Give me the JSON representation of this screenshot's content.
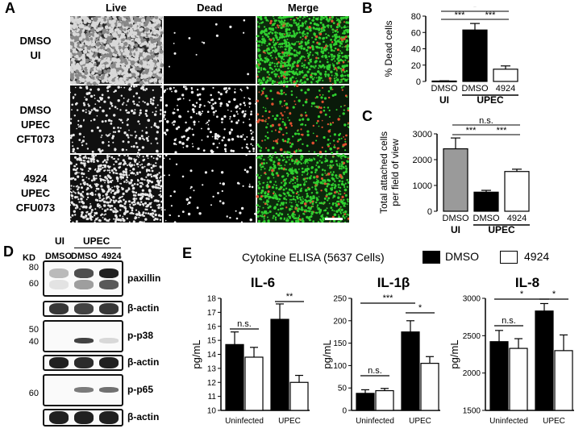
{
  "panel_a": {
    "letter": "A",
    "headers": [
      "Live",
      "Dead",
      "Merge"
    ],
    "rows": [
      {
        "label_lines": [
          "DMSO",
          "UI"
        ]
      },
      {
        "label_lines": [
          "DMSO",
          "UPEC",
          "CFT073"
        ]
      },
      {
        "label_lines": [
          "4924",
          "UPEC",
          "CFU073"
        ]
      }
    ]
  },
  "panel_b": {
    "letter": "B",
    "ylabel": "% Dead cells",
    "group_labels": [
      "UI",
      "UPEC"
    ],
    "sig": [
      "***",
      "*",
      "***"
    ]
  },
  "panel_c": {
    "letter": "C",
    "ylabel_lines": [
      "Total attached cells",
      "per field of view"
    ],
    "group_labels": [
      "UI",
      "UPEC"
    ],
    "sig": [
      "***",
      "n.s.",
      "***"
    ]
  },
  "panel_d": {
    "letter": "D",
    "kd_label": "KD",
    "ui_label": "UI",
    "upec_label": "UPEC",
    "lane_labels": [
      "DMSO",
      "DMSO",
      "4924"
    ],
    "blots": [
      {
        "label": "paxillin",
        "markers": [
          "80",
          "60"
        ]
      },
      {
        "label": "β-actin",
        "markers": []
      },
      {
        "label": "p-p38",
        "markers": [
          "50",
          "40"
        ]
      },
      {
        "label": "β-actin",
        "markers": []
      },
      {
        "label": "p-p65",
        "markers": [
          "60"
        ]
      },
      {
        "label": "β-actin",
        "markers": []
      }
    ]
  },
  "panel_e": {
    "letter": "E",
    "title": "Cytokine ELISA (5637 Cells)",
    "legend": [
      {
        "name": "DMSO",
        "color": "#000000"
      },
      {
        "name": "4924",
        "color": "#ffffff"
      }
    ],
    "ylabel": "pg/mL"
  },
  "chart_data": [
    {
      "type": "bar",
      "panel": "B",
      "categories": [
        "DMSO",
        "DMSO",
        "4924"
      ],
      "groups": [
        "UI",
        "UPEC",
        "UPEC"
      ],
      "values": [
        0.5,
        63,
        15
      ],
      "errors": [
        0.3,
        8,
        4
      ],
      "bar_colors": [
        "#9a9a9a",
        "#000000",
        "#ffffff"
      ],
      "ylabel": "% Dead cells",
      "ylim": [
        0,
        80
      ],
      "yticks": [
        "0",
        "20",
        "40",
        "60",
        "80"
      ],
      "significance": [
        "***",
        "*",
        "***"
      ]
    },
    {
      "type": "bar",
      "panel": "C",
      "categories": [
        "DMSO",
        "DMSO",
        "4924"
      ],
      "groups": [
        "UI",
        "UPEC",
        "UPEC"
      ],
      "values": [
        2420,
        740,
        1540
      ],
      "errors": [
        420,
        70,
        90
      ],
      "bar_colors": [
        "#9a9a9a",
        "#000000",
        "#ffffff"
      ],
      "ylabel": "Total attached cells per field of view",
      "ylim": [
        0,
        3000
      ],
      "yticks": [
        "0",
        "1000",
        "2000",
        "3000"
      ],
      "significance": [
        "***",
        "n.s.",
        "***"
      ]
    },
    {
      "type": "bar",
      "panel": "E",
      "title": "IL-6",
      "categories": [
        "Uninfected",
        "UPEC"
      ],
      "series": [
        {
          "name": "DMSO",
          "values": [
            14.7,
            16.5
          ],
          "errors": [
            0.9,
            1.1
          ]
        },
        {
          "name": "4924",
          "values": [
            13.8,
            12.0
          ],
          "errors": [
            0.7,
            0.5
          ]
        }
      ],
      "ylabel": "pg/mL",
      "ylim": [
        10,
        18
      ],
      "yticks": [
        "10",
        "11",
        "12",
        "13",
        "14",
        "15",
        "16",
        "17",
        "18"
      ],
      "significance": [
        "n.s.",
        "**"
      ]
    },
    {
      "type": "bar",
      "panel": "E",
      "title": "IL-1β",
      "categories": [
        "Uninfected",
        "UPEC"
      ],
      "series": [
        {
          "name": "DMSO",
          "values": [
            38,
            175
          ],
          "errors": [
            8,
            25
          ]
        },
        {
          "name": "4924",
          "values": [
            44,
            105
          ],
          "errors": [
            5,
            15
          ]
        }
      ],
      "ylabel": "pg/mL",
      "ylim": [
        0,
        250
      ],
      "yticks": [
        "0",
        "50",
        "100",
        "150",
        "200",
        "250"
      ],
      "significance": [
        "n.s.",
        "***",
        "*"
      ]
    },
    {
      "type": "bar",
      "panel": "E",
      "title": "IL-8",
      "categories": [
        "Uninfected",
        "UPEC"
      ],
      "series": [
        {
          "name": "DMSO",
          "values": [
            2420,
            2830
          ],
          "errors": [
            150,
            100
          ]
        },
        {
          "name": "4924",
          "values": [
            2330,
            2300
          ],
          "errors": [
            130,
            210
          ]
        }
      ],
      "ylabel": "pg/mL",
      "ylim": [
        1500,
        3000
      ],
      "yticks": [
        "1500",
        "2000",
        "2500",
        "3000"
      ],
      "significance": [
        "n.s.",
        "*",
        "*"
      ]
    }
  ]
}
